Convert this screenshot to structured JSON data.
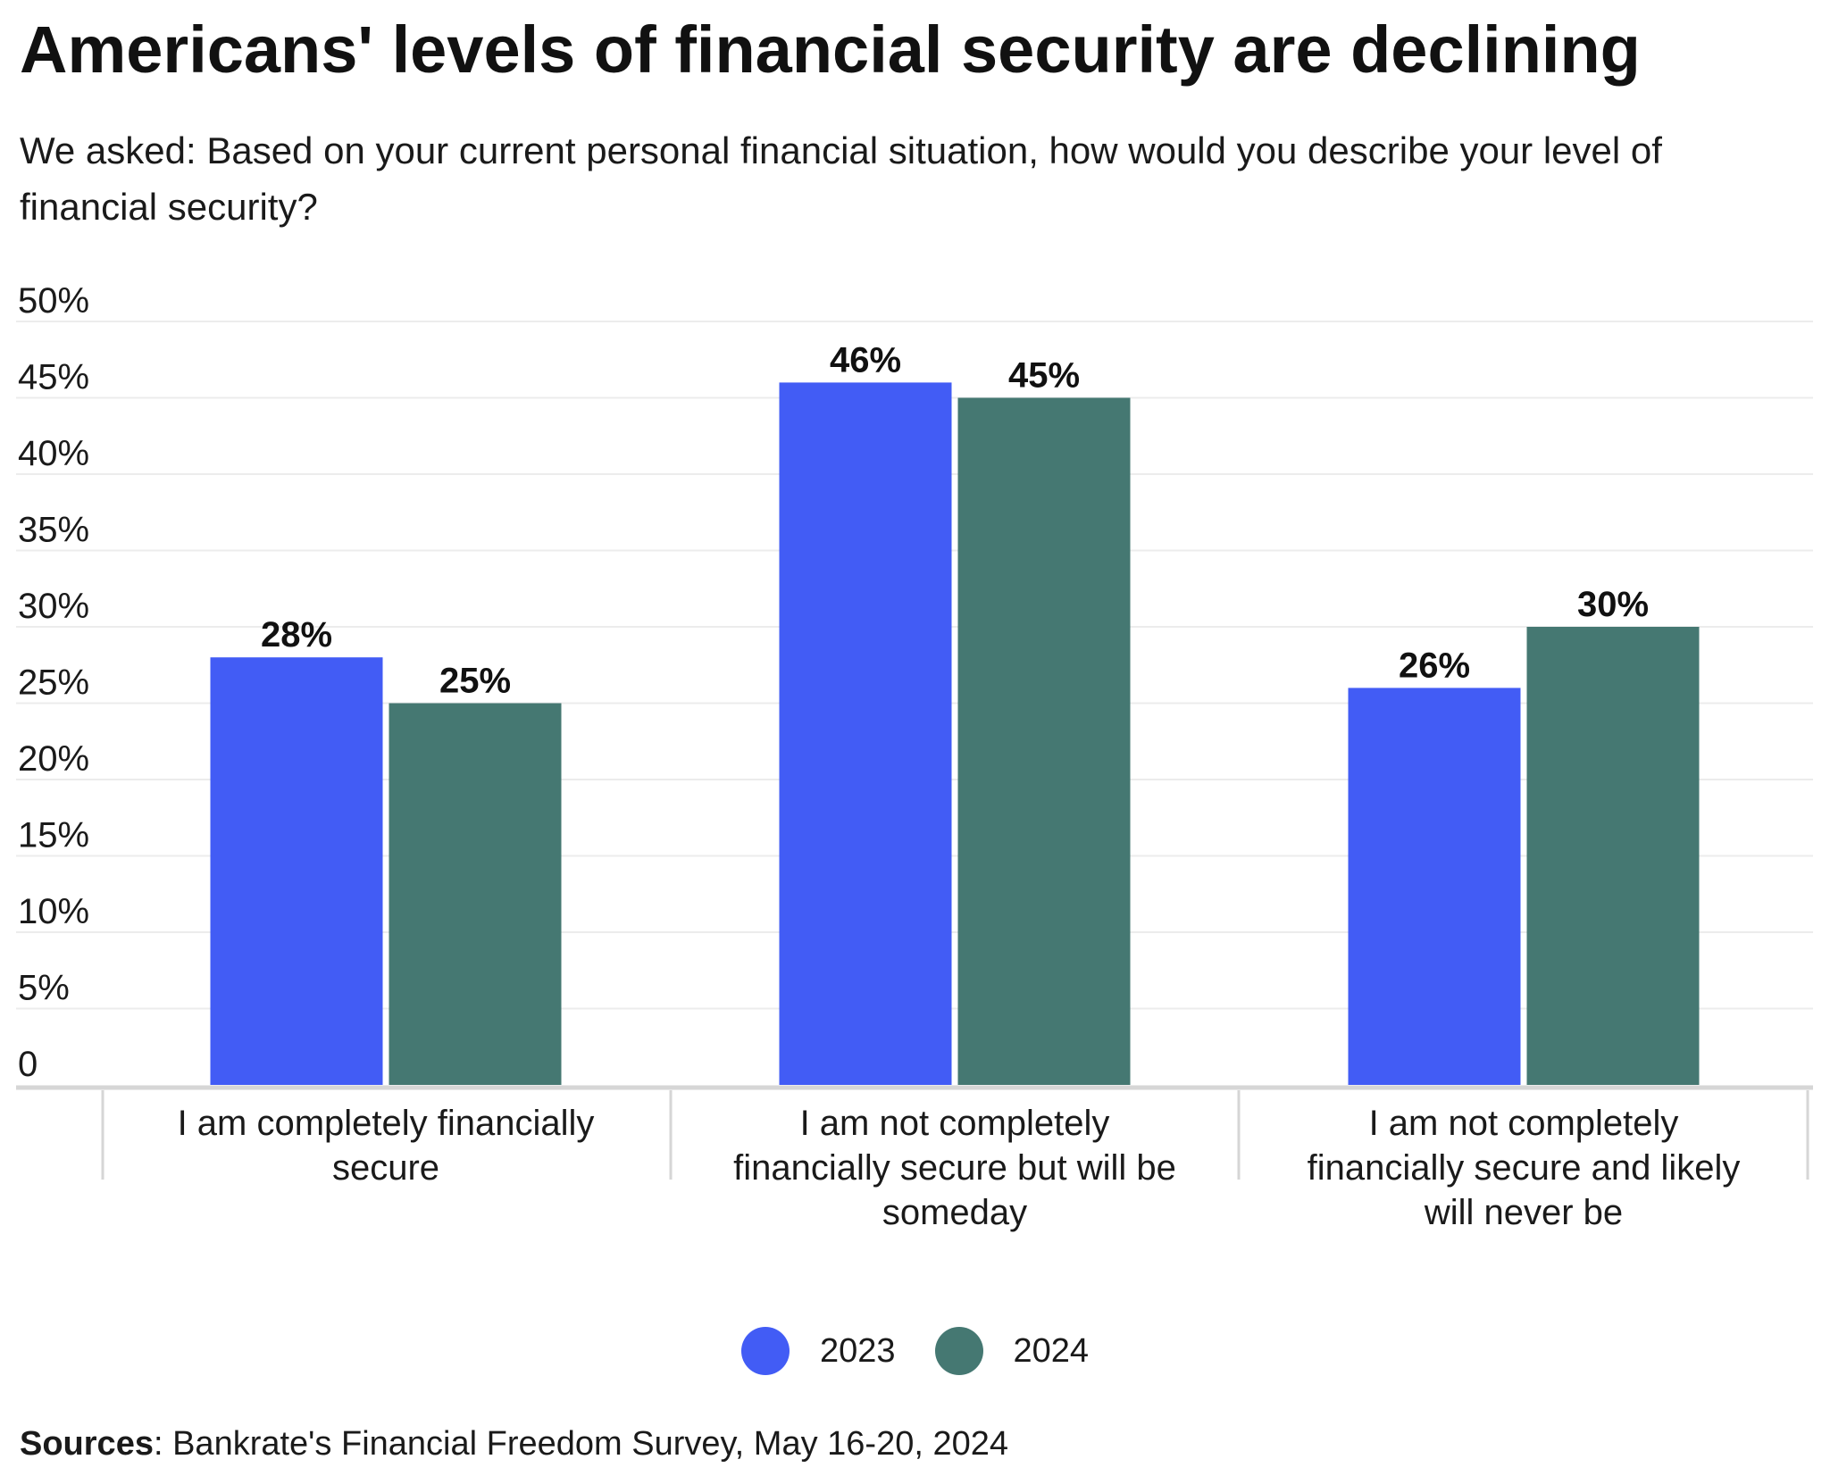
{
  "title": "Americans' levels of financial security are declining",
  "subtitle": "We asked: Based on your current personal financial situation, how would you describe your level of financial security?",
  "sources": {
    "label": "Sources",
    "text": ": Bankrate's Financial Freedom Survey, May 16-20, 2024"
  },
  "colors": {
    "series_2023": "#425cf5",
    "series_2024": "#457872",
    "gridline": "#ececec",
    "axis": "#d6d6d6"
  },
  "chart_data": {
    "type": "bar",
    "categories": [
      [
        "I am completely financially",
        "secure"
      ],
      [
        "I am not completely",
        "financially secure but will be",
        "someday"
      ],
      [
        "I am not completely",
        "financially secure and likely",
        "will never be"
      ]
    ],
    "series": [
      {
        "name": "2023",
        "values": [
          28,
          46,
          26
        ],
        "labels": [
          "28%",
          "46%",
          "26%"
        ]
      },
      {
        "name": "2024",
        "values": [
          25,
          45,
          30
        ],
        "labels": [
          "25%",
          "45%",
          "30%"
        ]
      }
    ],
    "ylim": [
      0,
      50
    ],
    "yticks": [
      0,
      5,
      10,
      15,
      20,
      25,
      30,
      35,
      40,
      45,
      50
    ],
    "ytick_labels": [
      "0",
      "5%",
      "10%",
      "15%",
      "20%",
      "25%",
      "30%",
      "35%",
      "40%",
      "45%",
      "50%"
    ],
    "grid": true,
    "legend": "bottom-center"
  }
}
